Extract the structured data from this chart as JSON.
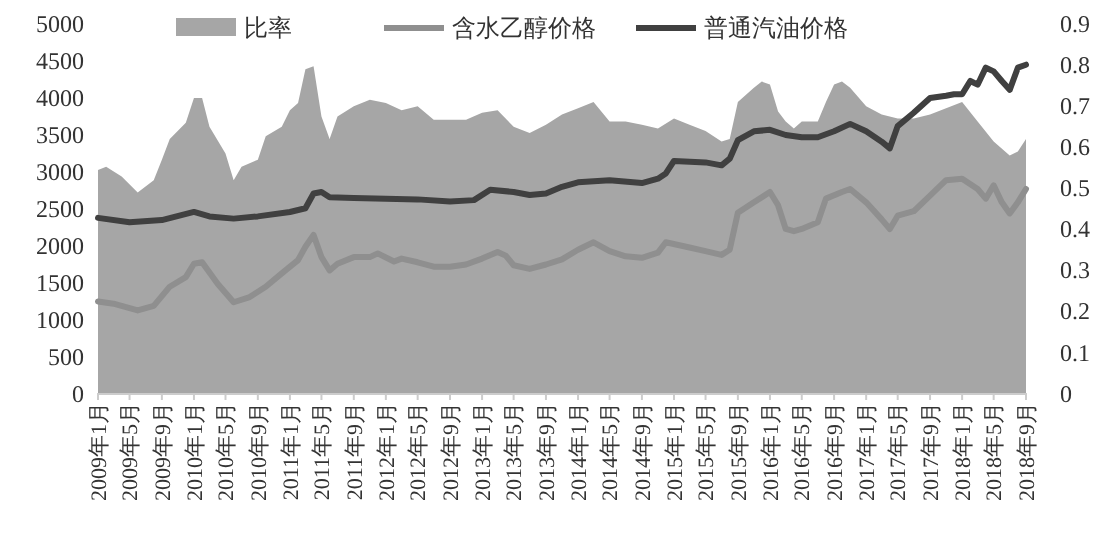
{
  "chart_data": {
    "type": "line",
    "legend": "top",
    "grid": false,
    "xlim": [
      "2009-01",
      "2018-09"
    ],
    "xticks": [
      {
        "value": "2009-01",
        "label": "2009年1月"
      },
      {
        "value": "2009-05",
        "label": "2009年5月"
      },
      {
        "value": "2009-09",
        "label": "2009年9月"
      },
      {
        "value": "2010-01",
        "label": "2010年1月"
      },
      {
        "value": "2010-05",
        "label": "2010年5月"
      },
      {
        "value": "2010-09",
        "label": "2010年9月"
      },
      {
        "value": "2011-01",
        "label": "2011年1月"
      },
      {
        "value": "2011-05",
        "label": "2011年5月"
      },
      {
        "value": "2011-09",
        "label": "2011年9月"
      },
      {
        "value": "2012-01",
        "label": "2012年1月"
      },
      {
        "value": "2012-05",
        "label": "2012年5月"
      },
      {
        "value": "2012-09",
        "label": "2012年9月"
      },
      {
        "value": "2013-01",
        "label": "2013年1月"
      },
      {
        "value": "2013-05",
        "label": "2013年5月"
      },
      {
        "value": "2013-09",
        "label": "2013年9月"
      },
      {
        "value": "2014-01",
        "label": "2014年1月"
      },
      {
        "value": "2014-05",
        "label": "2014年5月"
      },
      {
        "value": "2014-09",
        "label": "2014年9月"
      },
      {
        "value": "2015-01",
        "label": "2015年1月"
      },
      {
        "value": "2015-05",
        "label": "2015年5月"
      },
      {
        "value": "2015-09",
        "label": "2015年9月"
      },
      {
        "value": "2016-01",
        "label": "2016年1月"
      },
      {
        "value": "2016-05",
        "label": "2016年5月"
      },
      {
        "value": "2016-09",
        "label": "2016年9月"
      },
      {
        "value": "2017-01",
        "label": "2017年1月"
      },
      {
        "value": "2017-05",
        "label": "2017年5月"
      },
      {
        "value": "2017-09",
        "label": "2017年9月"
      },
      {
        "value": "2018-01",
        "label": "2018年1月"
      },
      {
        "value": "2018-05",
        "label": "2018年5月"
      },
      {
        "value": "2018-09",
        "label": "2018年9月"
      }
    ],
    "ylim": [
      0,
      5000
    ],
    "yticks": [
      0,
      500,
      1000,
      1500,
      2000,
      2500,
      3000,
      3500,
      4000,
      4500,
      5000
    ],
    "y2lim": [
      0,
      0.9
    ],
    "y2ticks": [
      0,
      0.1,
      0.2,
      0.3,
      0.4,
      0.5,
      0.6,
      0.7,
      0.8,
      0.9
    ],
    "series": [
      {
        "name": "比率",
        "type": "area",
        "axis": "y2",
        "color": "#a6a6a6",
        "x": [
          "2009-01",
          "2009-02",
          "2009-04",
          "2009-06",
          "2009-08",
          "2009-09",
          "2009-10",
          "2009-12",
          "2010-01",
          "2010-02",
          "2010-03",
          "2010-05",
          "2010-06",
          "2010-07",
          "2010-09",
          "2010-10",
          "2010-12",
          "2011-01",
          "2011-02",
          "2011-03",
          "2011-04",
          "2011-05",
          "2011-06",
          "2011-07",
          "2011-09",
          "2011-11",
          "2012-01",
          "2012-03",
          "2012-05",
          "2012-07",
          "2012-09",
          "2012-11",
          "2013-01",
          "2013-03",
          "2013-05",
          "2013-07",
          "2013-09",
          "2013-11",
          "2014-01",
          "2014-03",
          "2014-05",
          "2014-07",
          "2014-09",
          "2014-11",
          "2015-01",
          "2015-03",
          "2015-05",
          "2015-07",
          "2015-08",
          "2015-09",
          "2015-11",
          "2015-12",
          "2016-01",
          "2016-02",
          "2016-03",
          "2016-04",
          "2016-05",
          "2016-07",
          "2016-08",
          "2016-09",
          "2016-10",
          "2016-11",
          "2017-01",
          "2017-03",
          "2017-05",
          "2017-07",
          "2017-09",
          "2017-11",
          "2018-01",
          "2018-03",
          "2018-05",
          "2018-07",
          "2018-08",
          "2018-09"
        ],
        "values": [
          0.545,
          0.553,
          0.529,
          0.49,
          0.52,
          0.57,
          0.62,
          0.66,
          0.72,
          0.72,
          0.65,
          0.585,
          0.52,
          0.553,
          0.57,
          0.627,
          0.65,
          0.69,
          0.708,
          0.79,
          0.797,
          0.675,
          0.62,
          0.675,
          0.7,
          0.716,
          0.708,
          0.69,
          0.7,
          0.667,
          0.667,
          0.667,
          0.684,
          0.69,
          0.65,
          0.635,
          0.655,
          0.68,
          0.695,
          0.71,
          0.663,
          0.663,
          0.655,
          0.646,
          0.67,
          0.655,
          0.64,
          0.614,
          0.62,
          0.71,
          0.745,
          0.76,
          0.753,
          0.687,
          0.663,
          0.646,
          0.663,
          0.663,
          0.71,
          0.753,
          0.76,
          0.745,
          0.7,
          0.68,
          0.67,
          0.67,
          0.68,
          0.695,
          0.71,
          0.663,
          0.614,
          0.58,
          0.59,
          0.62
        ]
      },
      {
        "name": "含水乙醇价格",
        "color": "#8f8f8f",
        "x": [
          "2009-01",
          "2009-03",
          "2009-06",
          "2009-08",
          "2009-10",
          "2009-12",
          "2010-01",
          "2010-02",
          "2010-04",
          "2010-06",
          "2010-08",
          "2010-10",
          "2010-12",
          "2011-02",
          "2011-03",
          "2011-04",
          "2011-05",
          "2011-06",
          "2011-07",
          "2011-09",
          "2011-11",
          "2011-12",
          "2012-02",
          "2012-03",
          "2012-05",
          "2012-07",
          "2012-09",
          "2012-11",
          "2013-01",
          "2013-03",
          "2013-04",
          "2013-05",
          "2013-07",
          "2013-09",
          "2013-11",
          "2014-01",
          "2014-03",
          "2014-05",
          "2014-07",
          "2014-09",
          "2014-11",
          "2014-12",
          "2015-03",
          "2015-05",
          "2015-07",
          "2015-08",
          "2015-09",
          "2015-11",
          "2016-01",
          "2016-02",
          "2016-03",
          "2016-04",
          "2016-05",
          "2016-07",
          "2016-08",
          "2016-10",
          "2016-11",
          "2017-01",
          "2017-03",
          "2017-04",
          "2017-05",
          "2017-07",
          "2017-09",
          "2017-11",
          "2018-01",
          "2018-03",
          "2018-04",
          "2018-05",
          "2018-06",
          "2018-07",
          "2018-08",
          "2018-09"
        ],
        "values": [
          1250,
          1220,
          1130,
          1190,
          1450,
          1580,
          1760,
          1780,
          1490,
          1240,
          1310,
          1450,
          1630,
          1810,
          1990,
          2150,
          1850,
          1670,
          1760,
          1850,
          1850,
          1900,
          1790,
          1830,
          1780,
          1720,
          1720,
          1750,
          1830,
          1920,
          1870,
          1740,
          1690,
          1750,
          1820,
          1950,
          2050,
          1930,
          1860,
          1840,
          1910,
          2050,
          1980,
          1930,
          1880,
          1950,
          2450,
          2590,
          2730,
          2550,
          2230,
          2200,
          2230,
          2320,
          2640,
          2730,
          2770,
          2590,
          2360,
          2230,
          2410,
          2470,
          2680,
          2890,
          2910,
          2770,
          2640,
          2820,
          2590,
          2440,
          2590,
          2770
        ]
      },
      {
        "name": "普通汽油价格",
        "color": "#404040",
        "x": [
          "2009-01",
          "2009-05",
          "2009-09",
          "2010-01",
          "2010-03",
          "2010-06",
          "2010-09",
          "2011-01",
          "2011-03",
          "2011-04",
          "2011-05",
          "2011-06",
          "2011-09",
          "2012-01",
          "2012-05",
          "2012-09",
          "2012-12",
          "2013-02",
          "2013-05",
          "2013-07",
          "2013-09",
          "2013-11",
          "2014-01",
          "2014-05",
          "2014-09",
          "2014-11",
          "2014-12",
          "2015-01",
          "2015-05",
          "2015-07",
          "2015-08",
          "2015-09",
          "2015-11",
          "2016-01",
          "2016-03",
          "2016-05",
          "2016-07",
          "2016-09",
          "2016-11",
          "2017-01",
          "2017-03",
          "2017-04",
          "2017-05",
          "2017-07",
          "2017-09",
          "2017-11",
          "2017-12",
          "2018-01",
          "2018-02",
          "2018-03",
          "2018-04",
          "2018-05",
          "2018-06",
          "2018-07",
          "2018-08",
          "2018-09"
        ],
        "values": [
          2380,
          2320,
          2350,
          2460,
          2400,
          2370,
          2400,
          2460,
          2510,
          2710,
          2730,
          2660,
          2650,
          2640,
          2630,
          2600,
          2620,
          2760,
          2730,
          2690,
          2710,
          2800,
          2860,
          2890,
          2850,
          2910,
          2980,
          3150,
          3130,
          3090,
          3180,
          3430,
          3550,
          3570,
          3500,
          3470,
          3470,
          3550,
          3650,
          3550,
          3410,
          3320,
          3620,
          3800,
          4000,
          4030,
          4050,
          4050,
          4230,
          4180,
          4410,
          4360,
          4230,
          4110,
          4410,
          4450
        ]
      }
    ]
  }
}
